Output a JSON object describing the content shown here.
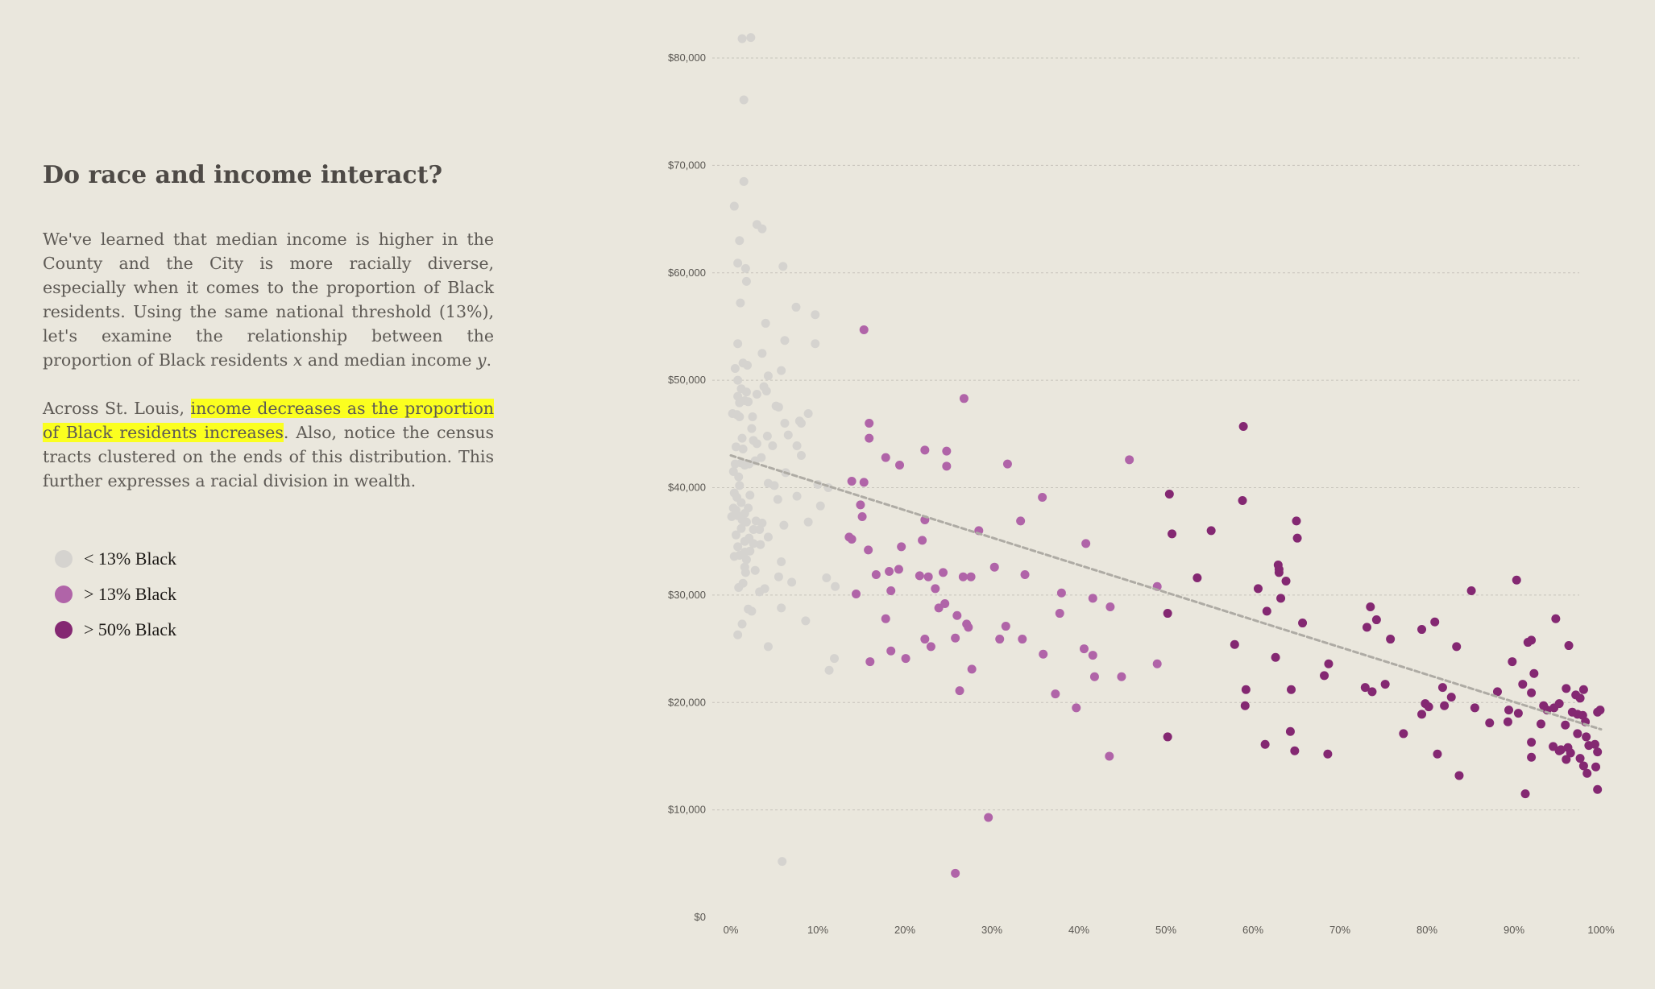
{
  "story": {
    "heading": "Do race and income interact?",
    "p1": {
      "a": "We've learned that median income is higher in the County and the City is more racially diverse, especially when it comes to the proportion of Black residents. Using the same national threshold (13%), let's examine the relationship between the proportion of Black residents ",
      "x_var": "x",
      "b": " and median income ",
      "y_var": "y",
      "c": "."
    },
    "p2": {
      "a": "Across St. Louis, ",
      "highlight": "income decreases as the proportion of Black residents increases",
      "b": ". Also, notice the census tracts clustered on the ends of this distribution. This further expresses a racial division in wealth."
    }
  },
  "legend": [
    {
      "label": "< 13% Black",
      "color": "#d5d3cf"
    },
    {
      "label": "> 13% Black",
      "color": "#b064a8"
    },
    {
      "label": "> 50% Black",
      "color": "#842872"
    }
  ],
  "chart_data": {
    "type": "scatter",
    "x_ticks": [
      "0%",
      "10%",
      "20%",
      "30%",
      "40%",
      "50%",
      "60%",
      "70%",
      "80%",
      "90%",
      "100%"
    ],
    "y_ticks": [
      "$0",
      "$10,000",
      "$20,000",
      "$30,000",
      "$40,000",
      "$50,000",
      "$60,000",
      "$70,000",
      "$80,000"
    ],
    "xlim": [
      0,
      100
    ],
    "ylim": [
      0,
      80000
    ],
    "grid": "horizontal dotted",
    "colors": {
      "low": "#d5d3cf",
      "mid": "#b064a8",
      "high": "#842872",
      "trend": "#aeaba4"
    },
    "trend": {
      "x": [
        0,
        100
      ],
      "y": [
        43000,
        17500
      ]
    },
    "series": [
      {
        "group": "low",
        "points": [
          [
            1.3,
            81800
          ],
          [
            2.3,
            81900
          ],
          [
            1.5,
            76100
          ],
          [
            1.5,
            68500
          ],
          [
            0.4,
            66200
          ],
          [
            3.0,
            64500
          ],
          [
            3.6,
            64100
          ],
          [
            1.0,
            63000
          ],
          [
            6.0,
            60600
          ],
          [
            0.8,
            60900
          ],
          [
            1.7,
            60400
          ],
          [
            1.8,
            59200
          ],
          [
            1.1,
            57200
          ],
          [
            7.5,
            56800
          ],
          [
            9.7,
            56100
          ],
          [
            4.0,
            55300
          ],
          [
            0.8,
            53400
          ],
          [
            6.2,
            53700
          ],
          [
            9.7,
            53400
          ],
          [
            3.6,
            52500
          ],
          [
            1.4,
            51600
          ],
          [
            1.9,
            51400
          ],
          [
            0.5,
            51100
          ],
          [
            5.8,
            50900
          ],
          [
            4.3,
            50400
          ],
          [
            0.8,
            50000
          ],
          [
            3.8,
            49400
          ],
          [
            1.2,
            49200
          ],
          [
            4.1,
            49000
          ],
          [
            1.8,
            48900
          ],
          [
            3.0,
            48700
          ],
          [
            0.8,
            48500
          ],
          [
            1.6,
            48100
          ],
          [
            2.0,
            48000
          ],
          [
            1.0,
            47900
          ],
          [
            5.2,
            47600
          ],
          [
            5.5,
            47500
          ],
          [
            0.2,
            46900
          ],
          [
            0.7,
            46800
          ],
          [
            8.9,
            46900
          ],
          [
            2.5,
            46600
          ],
          [
            1.0,
            46600
          ],
          [
            6.2,
            46000
          ],
          [
            7.9,
            46200
          ],
          [
            8.1,
            46000
          ],
          [
            2.4,
            45500
          ],
          [
            4.2,
            44800
          ],
          [
            6.6,
            44900
          ],
          [
            1.3,
            44600
          ],
          [
            2.6,
            44400
          ],
          [
            3.0,
            44100
          ],
          [
            4.8,
            43900
          ],
          [
            0.6,
            43800
          ],
          [
            1.4,
            43600
          ],
          [
            7.6,
            43900
          ],
          [
            8.1,
            43000
          ],
          [
            3.5,
            42800
          ],
          [
            2.8,
            42500
          ],
          [
            1.2,
            42300
          ],
          [
            0.5,
            42200
          ],
          [
            2.1,
            42200
          ],
          [
            1.6,
            42100
          ],
          [
            0.3,
            41500
          ],
          [
            6.3,
            41400
          ],
          [
            4.3,
            40400
          ],
          [
            0.9,
            41000
          ],
          [
            10.0,
            40300
          ],
          [
            1.0,
            40200
          ],
          [
            5.0,
            40200
          ],
          [
            11.2,
            40000
          ],
          [
            0.4,
            39500
          ],
          [
            0.7,
            39100
          ],
          [
            2.2,
            39300
          ],
          [
            7.6,
            39200
          ],
          [
            5.4,
            38900
          ],
          [
            1.2,
            38600
          ],
          [
            0.3,
            38100
          ],
          [
            2.0,
            38100
          ],
          [
            10.3,
            38300
          ],
          [
            0.6,
            37900
          ],
          [
            1.6,
            37600
          ],
          [
            0.8,
            37400
          ],
          [
            0.1,
            37300
          ],
          [
            1.3,
            37000
          ],
          [
            1.8,
            36800
          ],
          [
            2.9,
            36900
          ],
          [
            3.6,
            36700
          ],
          [
            6.1,
            36500
          ],
          [
            8.9,
            36800
          ],
          [
            1.2,
            36200
          ],
          [
            2.6,
            36100
          ],
          [
            3.3,
            36100
          ],
          [
            0.6,
            35600
          ],
          [
            4.3,
            35400
          ],
          [
            2.1,
            35300
          ],
          [
            1.6,
            35000
          ],
          [
            2.6,
            34800
          ],
          [
            3.4,
            34700
          ],
          [
            0.8,
            34500
          ],
          [
            1.6,
            34000
          ],
          [
            2.2,
            34100
          ],
          [
            1.0,
            33700
          ],
          [
            1.8,
            33300
          ],
          [
            0.4,
            33600
          ],
          [
            5.8,
            33100
          ],
          [
            1.6,
            32600
          ],
          [
            2.8,
            32300
          ],
          [
            1.7,
            32100
          ],
          [
            5.5,
            31700
          ],
          [
            11.0,
            31600
          ],
          [
            7.0,
            31200
          ],
          [
            1.4,
            31100
          ],
          [
            12.0,
            30800
          ],
          [
            0.9,
            30700
          ],
          [
            3.9,
            30600
          ],
          [
            3.3,
            30300
          ],
          [
            2.0,
            28700
          ],
          [
            2.4,
            28500
          ],
          [
            5.8,
            28800
          ],
          [
            8.6,
            27600
          ],
          [
            1.3,
            27300
          ],
          [
            0.8,
            26300
          ],
          [
            4.3,
            25200
          ],
          [
            11.9,
            24100
          ],
          [
            11.3,
            23000
          ],
          [
            5.9,
            5200
          ]
        ]
      },
      {
        "group": "mid",
        "points": [
          [
            15.3,
            54700
          ],
          [
            26.8,
            48300
          ],
          [
            15.9,
            46000
          ],
          [
            15.9,
            44600
          ],
          [
            22.3,
            43500
          ],
          [
            24.8,
            43400
          ],
          [
            17.8,
            42800
          ],
          [
            19.4,
            42100
          ],
          [
            24.8,
            42000
          ],
          [
            31.8,
            42200
          ],
          [
            45.8,
            42600
          ],
          [
            13.9,
            40600
          ],
          [
            15.3,
            40500
          ],
          [
            35.8,
            39100
          ],
          [
            14.9,
            38400
          ],
          [
            15.1,
            37300
          ],
          [
            22.3,
            37000
          ],
          [
            33.3,
            36900
          ],
          [
            28.5,
            36000
          ],
          [
            13.6,
            35400
          ],
          [
            13.9,
            35200
          ],
          [
            22.0,
            35100
          ],
          [
            40.8,
            34800
          ],
          [
            15.8,
            34200
          ],
          [
            19.6,
            34500
          ],
          [
            30.3,
            32600
          ],
          [
            18.2,
            32200
          ],
          [
            19.3,
            32400
          ],
          [
            24.4,
            32100
          ],
          [
            16.7,
            31900
          ],
          [
            21.7,
            31800
          ],
          [
            22.7,
            31700
          ],
          [
            26.7,
            31700
          ],
          [
            27.6,
            31700
          ],
          [
            33.8,
            31900
          ],
          [
            23.5,
            30600
          ],
          [
            14.4,
            30100
          ],
          [
            18.4,
            30400
          ],
          [
            49.0,
            30800
          ],
          [
            38.0,
            30200
          ],
          [
            41.6,
            29700
          ],
          [
            24.6,
            29200
          ],
          [
            23.9,
            28800
          ],
          [
            43.6,
            28900
          ],
          [
            37.8,
            28300
          ],
          [
            26.0,
            28100
          ],
          [
            17.8,
            27800
          ],
          [
            27.1,
            27300
          ],
          [
            27.3,
            27000
          ],
          [
            31.6,
            27100
          ],
          [
            22.3,
            25900
          ],
          [
            25.8,
            26000
          ],
          [
            30.9,
            25900
          ],
          [
            33.5,
            25900
          ],
          [
            23.0,
            25200
          ],
          [
            40.6,
            25000
          ],
          [
            18.4,
            24800
          ],
          [
            41.6,
            24400
          ],
          [
            35.9,
            24500
          ],
          [
            16.0,
            23800
          ],
          [
            20.1,
            24100
          ],
          [
            49.0,
            23600
          ],
          [
            27.7,
            23100
          ],
          [
            41.8,
            22400
          ],
          [
            44.9,
            22400
          ],
          [
            26.3,
            21100
          ],
          [
            37.3,
            20800
          ],
          [
            39.7,
            19500
          ],
          [
            43.5,
            15000
          ],
          [
            29.6,
            9300
          ],
          [
            25.8,
            4100
          ]
        ]
      },
      {
        "group": "high",
        "points": [
          [
            58.9,
            45700
          ],
          [
            50.4,
            39400
          ],
          [
            58.8,
            38800
          ],
          [
            65.0,
            36900
          ],
          [
            55.2,
            36000
          ],
          [
            50.7,
            35700
          ],
          [
            65.1,
            35300
          ],
          [
            62.9,
            32800
          ],
          [
            63.0,
            32400
          ],
          [
            63.0,
            32100
          ],
          [
            53.6,
            31600
          ],
          [
            63.8,
            31300
          ],
          [
            60.6,
            30600
          ],
          [
            85.1,
            30400
          ],
          [
            90.3,
            31400
          ],
          [
            63.2,
            29700
          ],
          [
            73.5,
            28900
          ],
          [
            50.2,
            28300
          ],
          [
            61.6,
            28500
          ],
          [
            74.2,
            27700
          ],
          [
            80.9,
            27500
          ],
          [
            94.8,
            27800
          ],
          [
            73.1,
            27000
          ],
          [
            65.7,
            27400
          ],
          [
            79.4,
            26800
          ],
          [
            75.8,
            25900
          ],
          [
            57.9,
            25400
          ],
          [
            91.6,
            25600
          ],
          [
            92.0,
            25800
          ],
          [
            83.4,
            25200
          ],
          [
            96.3,
            25300
          ],
          [
            62.6,
            24200
          ],
          [
            68.7,
            23600
          ],
          [
            89.8,
            23800
          ],
          [
            92.3,
            22700
          ],
          [
            68.2,
            22500
          ],
          [
            91.0,
            21700
          ],
          [
            75.2,
            21700
          ],
          [
            59.2,
            21200
          ],
          [
            64.4,
            21200
          ],
          [
            72.9,
            21400
          ],
          [
            73.7,
            21000
          ],
          [
            81.8,
            21400
          ],
          [
            88.1,
            21000
          ],
          [
            92.0,
            20900
          ],
          [
            96.0,
            21300
          ],
          [
            97.1,
            20700
          ],
          [
            97.6,
            20400
          ],
          [
            98.0,
            21200
          ],
          [
            82.8,
            20500
          ],
          [
            93.4,
            19700
          ],
          [
            79.8,
            19900
          ],
          [
            80.2,
            19600
          ],
          [
            82.0,
            19700
          ],
          [
            85.5,
            19500
          ],
          [
            59.1,
            19700
          ],
          [
            89.4,
            19300
          ],
          [
            90.5,
            19000
          ],
          [
            94.6,
            19500
          ],
          [
            95.2,
            19900
          ],
          [
            96.7,
            19100
          ],
          [
            97.3,
            18900
          ],
          [
            97.9,
            18800
          ],
          [
            99.6,
            19100
          ],
          [
            99.9,
            19300
          ],
          [
            79.4,
            18900
          ],
          [
            93.8,
            19300
          ],
          [
            98.2,
            18200
          ],
          [
            87.2,
            18100
          ],
          [
            89.3,
            18200
          ],
          [
            93.1,
            18000
          ],
          [
            95.9,
            17900
          ],
          [
            77.3,
            17100
          ],
          [
            97.3,
            17100
          ],
          [
            98.3,
            16800
          ],
          [
            64.3,
            17300
          ],
          [
            50.2,
            16800
          ],
          [
            61.4,
            16100
          ],
          [
            92.0,
            16300
          ],
          [
            94.5,
            15900
          ],
          [
            95.4,
            15600
          ],
          [
            96.2,
            15800
          ],
          [
            98.6,
            16000
          ],
          [
            99.3,
            16100
          ],
          [
            99.6,
            15400
          ],
          [
            64.8,
            15500
          ],
          [
            68.6,
            15200
          ],
          [
            81.2,
            15200
          ],
          [
            92.0,
            14900
          ],
          [
            95.2,
            15500
          ],
          [
            96.5,
            15300
          ],
          [
            97.6,
            14800
          ],
          [
            98.0,
            14100
          ],
          [
            96.0,
            14700
          ],
          [
            99.4,
            14000
          ],
          [
            98.4,
            13400
          ],
          [
            83.7,
            13200
          ],
          [
            91.3,
            11500
          ],
          [
            99.6,
            11900
          ]
        ]
      }
    ]
  }
}
